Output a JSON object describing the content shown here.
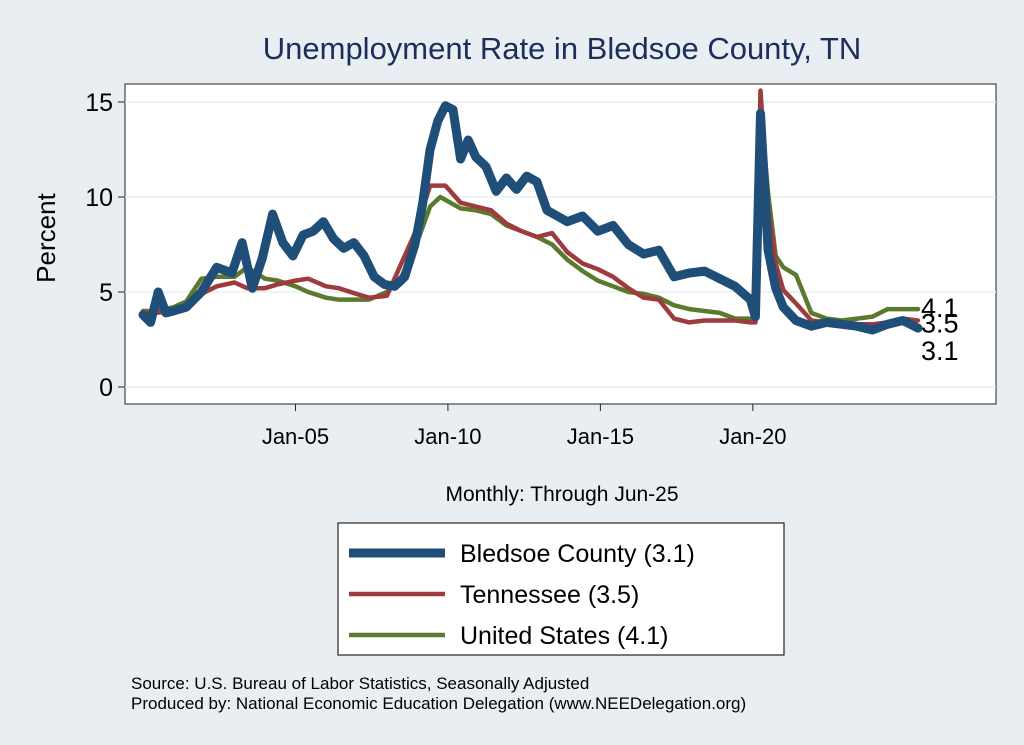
{
  "chart_data": {
    "type": "line",
    "title": "Unemployment Rate in Bledsoe  County, TN",
    "ylabel": "Percent",
    "xlabel": "Monthly: Through Jun-25",
    "x_start": "2000-01",
    "x_end": "2025-06",
    "ylim": [
      0,
      16
    ],
    "yticks": [
      0,
      5,
      10,
      15
    ],
    "xticks": [
      {
        "label": "Jan-05",
        "date": "2005-01"
      },
      {
        "label": "Jan-10",
        "date": "2010-01"
      },
      {
        "label": "Jan-15",
        "date": "2015-01"
      },
      {
        "label": "Jan-20",
        "date": "2020-01"
      }
    ],
    "grid": true,
    "legend_position": "bottom",
    "series": [
      {
        "name": "Bledsoe  County",
        "legend_label": "Bledsoe  County (3.1)",
        "end_label": "3.1",
        "color": "#1f4e79",
        "points": [
          [
            "2000-01",
            3.8
          ],
          [
            "2000-04",
            3.4
          ],
          [
            "2000-07",
            5.0
          ],
          [
            "2000-10",
            3.9
          ],
          [
            "2001-01",
            4.0
          ],
          [
            "2001-06",
            4.2
          ],
          [
            "2001-12",
            5.0
          ],
          [
            "2002-06",
            6.3
          ],
          [
            "2002-12",
            6.0
          ],
          [
            "2003-04",
            7.6
          ],
          [
            "2003-08",
            5.2
          ],
          [
            "2003-12",
            6.8
          ],
          [
            "2004-04",
            9.1
          ],
          [
            "2004-08",
            7.6
          ],
          [
            "2004-12",
            6.9
          ],
          [
            "2005-04",
            8.0
          ],
          [
            "2005-08",
            8.2
          ],
          [
            "2005-12",
            8.7
          ],
          [
            "2006-04",
            7.8
          ],
          [
            "2006-08",
            7.3
          ],
          [
            "2006-12",
            7.6
          ],
          [
            "2007-04",
            6.9
          ],
          [
            "2007-08",
            5.8
          ],
          [
            "2007-12",
            5.4
          ],
          [
            "2008-04",
            5.3
          ],
          [
            "2008-08",
            5.8
          ],
          [
            "2008-12",
            7.5
          ],
          [
            "2009-03",
            9.6
          ],
          [
            "2009-06",
            12.5
          ],
          [
            "2009-09",
            14.0
          ],
          [
            "2009-12",
            14.8
          ],
          [
            "2010-03",
            14.6
          ],
          [
            "2010-06",
            12.0
          ],
          [
            "2010-09",
            13.0
          ],
          [
            "2010-12",
            12.1
          ],
          [
            "2011-04",
            11.6
          ],
          [
            "2011-08",
            10.3
          ],
          [
            "2011-12",
            11.0
          ],
          [
            "2012-04",
            10.4
          ],
          [
            "2012-08",
            11.1
          ],
          [
            "2012-12",
            10.8
          ],
          [
            "2013-04",
            9.3
          ],
          [
            "2013-08",
            9.0
          ],
          [
            "2013-12",
            8.7
          ],
          [
            "2014-06",
            9.0
          ],
          [
            "2014-12",
            8.2
          ],
          [
            "2015-06",
            8.5
          ],
          [
            "2015-12",
            7.5
          ],
          [
            "2016-06",
            7.0
          ],
          [
            "2016-12",
            7.2
          ],
          [
            "2017-06",
            5.8
          ],
          [
            "2017-12",
            6.0
          ],
          [
            "2018-06",
            6.1
          ],
          [
            "2018-12",
            5.7
          ],
          [
            "2019-06",
            5.3
          ],
          [
            "2019-12",
            4.6
          ],
          [
            "2020-02",
            3.7
          ],
          [
            "2020-04",
            14.4
          ],
          [
            "2020-07",
            7.2
          ],
          [
            "2020-10",
            5.2
          ],
          [
            "2021-01",
            4.2
          ],
          [
            "2021-06",
            3.5
          ],
          [
            "2021-12",
            3.2
          ],
          [
            "2022-06",
            3.4
          ],
          [
            "2022-12",
            3.3
          ],
          [
            "2023-06",
            3.2
          ],
          [
            "2023-12",
            3.0
          ],
          [
            "2024-06",
            3.3
          ],
          [
            "2024-12",
            3.5
          ],
          [
            "2025-06",
            3.1
          ]
        ]
      },
      {
        "name": "Tennessee",
        "legend_label": "Tennessee (3.5)",
        "end_label": "3.5",
        "color": "#9e3b3e",
        "points": [
          [
            "2000-01",
            3.9
          ],
          [
            "2000-06",
            3.9
          ],
          [
            "2001-01",
            4.0
          ],
          [
            "2001-06",
            4.3
          ],
          [
            "2001-12",
            4.9
          ],
          [
            "2002-06",
            5.3
          ],
          [
            "2003-01",
            5.5
          ],
          [
            "2003-06",
            5.2
          ],
          [
            "2004-01",
            5.2
          ],
          [
            "2004-06",
            5.4
          ],
          [
            "2005-01",
            5.6
          ],
          [
            "2005-06",
            5.7
          ],
          [
            "2006-01",
            5.3
          ],
          [
            "2006-06",
            5.2
          ],
          [
            "2007-01",
            4.9
          ],
          [
            "2007-06",
            4.7
          ],
          [
            "2008-01",
            4.8
          ],
          [
            "2008-06",
            6.3
          ],
          [
            "2008-12",
            8.1
          ],
          [
            "2009-06",
            10.6
          ],
          [
            "2009-12",
            10.6
          ],
          [
            "2010-06",
            9.7
          ],
          [
            "2010-12",
            9.5
          ],
          [
            "2011-06",
            9.3
          ],
          [
            "2011-12",
            8.6
          ],
          [
            "2012-06",
            8.2
          ],
          [
            "2012-12",
            7.9
          ],
          [
            "2013-06",
            8.1
          ],
          [
            "2013-12",
            7.1
          ],
          [
            "2014-06",
            6.5
          ],
          [
            "2014-12",
            6.2
          ],
          [
            "2015-06",
            5.8
          ],
          [
            "2015-12",
            5.2
          ],
          [
            "2016-06",
            4.7
          ],
          [
            "2016-12",
            4.6
          ],
          [
            "2017-06",
            3.6
          ],
          [
            "2017-12",
            3.4
          ],
          [
            "2018-06",
            3.5
          ],
          [
            "2018-12",
            3.5
          ],
          [
            "2019-06",
            3.5
          ],
          [
            "2019-12",
            3.4
          ],
          [
            "2020-02",
            3.4
          ],
          [
            "2020-04",
            15.6
          ],
          [
            "2020-07",
            9.5
          ],
          [
            "2020-10",
            6.5
          ],
          [
            "2021-01",
            5.1
          ],
          [
            "2021-06",
            4.4
          ],
          [
            "2021-12",
            3.5
          ],
          [
            "2022-06",
            3.4
          ],
          [
            "2022-12",
            3.4
          ],
          [
            "2023-06",
            3.3
          ],
          [
            "2023-12",
            3.3
          ],
          [
            "2024-06",
            3.4
          ],
          [
            "2024-12",
            3.6
          ],
          [
            "2025-06",
            3.5
          ]
        ]
      },
      {
        "name": "United States",
        "legend_label": "United States (4.1)",
        "end_label": "4.1",
        "color": "#5b7a2e",
        "points": [
          [
            "2000-01",
            4.0
          ],
          [
            "2000-06",
            4.0
          ],
          [
            "2001-01",
            4.2
          ],
          [
            "2001-06",
            4.5
          ],
          [
            "2001-12",
            5.7
          ],
          [
            "2002-06",
            5.8
          ],
          [
            "2003-01",
            5.8
          ],
          [
            "2003-06",
            6.3
          ],
          [
            "2004-01",
            5.7
          ],
          [
            "2004-06",
            5.6
          ],
          [
            "2005-01",
            5.3
          ],
          [
            "2005-06",
            5.0
          ],
          [
            "2006-01",
            4.7
          ],
          [
            "2006-06",
            4.6
          ],
          [
            "2007-01",
            4.6
          ],
          [
            "2007-06",
            4.6
          ],
          [
            "2008-01",
            5.0
          ],
          [
            "2008-06",
            5.6
          ],
          [
            "2008-12",
            7.3
          ],
          [
            "2009-06",
            9.5
          ],
          [
            "2009-10",
            10.0
          ],
          [
            "2010-06",
            9.4
          ],
          [
            "2010-12",
            9.3
          ],
          [
            "2011-06",
            9.1
          ],
          [
            "2011-12",
            8.5
          ],
          [
            "2012-06",
            8.2
          ],
          [
            "2012-12",
            7.9
          ],
          [
            "2013-06",
            7.5
          ],
          [
            "2013-12",
            6.7
          ],
          [
            "2014-06",
            6.1
          ],
          [
            "2014-12",
            5.6
          ],
          [
            "2015-06",
            5.3
          ],
          [
            "2015-12",
            5.0
          ],
          [
            "2016-06",
            4.9
          ],
          [
            "2016-12",
            4.7
          ],
          [
            "2017-06",
            4.3
          ],
          [
            "2017-12",
            4.1
          ],
          [
            "2018-06",
            4.0
          ],
          [
            "2018-12",
            3.9
          ],
          [
            "2019-06",
            3.6
          ],
          [
            "2019-12",
            3.6
          ],
          [
            "2020-02",
            3.5
          ],
          [
            "2020-04",
            14.8
          ],
          [
            "2020-07",
            10.2
          ],
          [
            "2020-10",
            6.9
          ],
          [
            "2021-01",
            6.3
          ],
          [
            "2021-06",
            5.9
          ],
          [
            "2021-12",
            3.9
          ],
          [
            "2022-06",
            3.6
          ],
          [
            "2022-12",
            3.5
          ],
          [
            "2023-06",
            3.6
          ],
          [
            "2023-12",
            3.7
          ],
          [
            "2024-06",
            4.1
          ],
          [
            "2024-12",
            4.1
          ],
          [
            "2025-06",
            4.1
          ]
        ]
      }
    ]
  },
  "footer": {
    "source": "Source: U.S. Bureau of Labor Statistics, Seasonally Adjusted",
    "produced": "Produced by: National Economic Education Delegation (www.NEEDelegation.org)"
  }
}
